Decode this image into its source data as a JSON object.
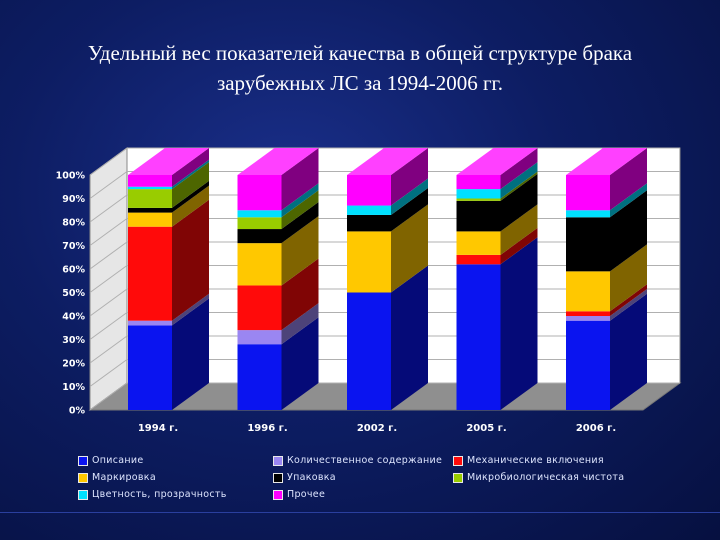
{
  "title_lines": [
    "Удельный вес показателей качества  в общей структуре брака",
    "зарубежных ЛС за 1994-2006 гг."
  ],
  "chart_data": {
    "type": "bar",
    "stacked": true,
    "three_d": true,
    "categories": [
      "1994 г.",
      "1996 г.",
      "2002 г.",
      "2005 г.",
      "2006 г."
    ],
    "y_ticks": [
      "0%",
      "10%",
      "20%",
      "30%",
      "40%",
      "50%",
      "60%",
      "70%",
      "80%",
      "90%",
      "100%"
    ],
    "ylim": [
      0,
      100
    ],
    "series": [
      {
        "name": "Описание",
        "color": "#0a14f0",
        "values": [
          36,
          28,
          50,
          62,
          38
        ]
      },
      {
        "name": "Количественное содержание",
        "color": "#9a86f2",
        "values": [
          2,
          6,
          0,
          0,
          2
        ]
      },
      {
        "name": "Механические включения",
        "color": "#ff0a0a",
        "values": [
          40,
          19,
          0,
          4,
          2
        ]
      },
      {
        "name": "Маркировка",
        "color": "#ffc800",
        "values": [
          6,
          18,
          26,
          10,
          17
        ]
      },
      {
        "name": "Упаковка",
        "color": "#000000",
        "values": [
          2,
          6,
          7,
          13,
          23
        ]
      },
      {
        "name": "Микробиологическая чистота",
        "color": "#99cc00",
        "values": [
          8,
          5,
          0,
          1,
          0
        ]
      },
      {
        "name": "Цветность, прозрачность",
        "color": "#00e0ff",
        "values": [
          1,
          3,
          4,
          4,
          3
        ]
      },
      {
        "name": "Прочее",
        "color": "#ff00ff",
        "values": [
          5,
          15,
          13,
          6,
          15
        ]
      }
    ],
    "grid": true,
    "legend_position": "bottom"
  }
}
